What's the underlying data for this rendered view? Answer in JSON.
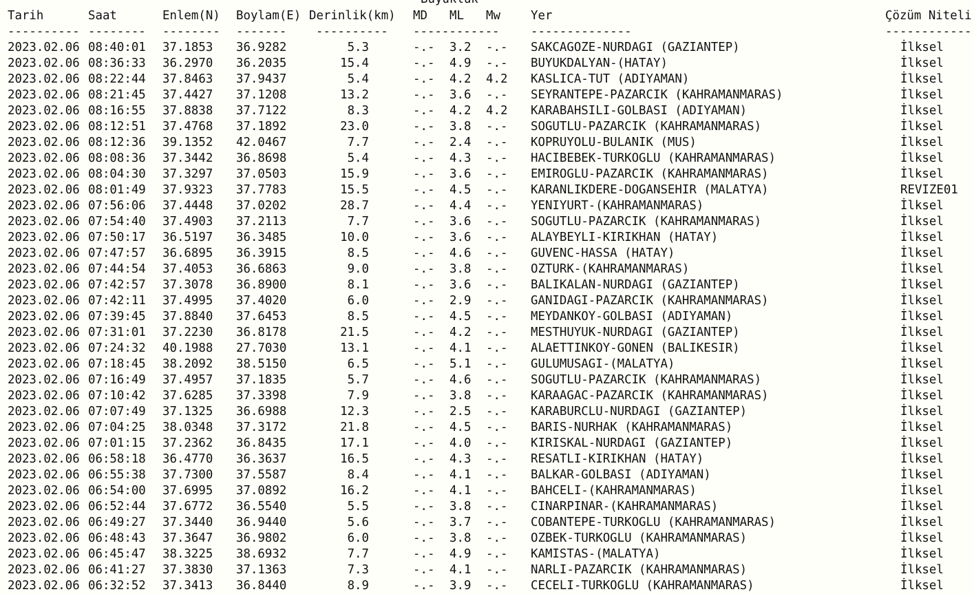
{
  "header": {
    "group_label": "Büyüklük",
    "columns": {
      "tarih": "Tarih",
      "saat": "Saat",
      "enlem": "Enlem(N)",
      "boylam": "Boylam(E)",
      "derinlik": "Derinlik(km)",
      "md": "MD",
      "ml": "ML",
      "mw": "Mw",
      "yer": "Yer",
      "cozum": "Çözüm Niteli"
    },
    "separators": {
      "tarih": "----------",
      "saat": "--------",
      "enlem": "--------",
      "boylam": "-------",
      "derinlik": "----------",
      "mag": "------------",
      "yer": "--------------",
      "cozum": "------------"
    }
  },
  "rows": [
    [
      "2023.02.06",
      "08:40:01",
      "37.1853",
      "36.9282",
      "5.3",
      "-.-",
      "3.2",
      "-.-",
      "SAKCAGOZE-NURDAGI (GAZIANTEP)",
      "İlksel"
    ],
    [
      "2023.02.06",
      "08:36:33",
      "36.2970",
      "36.2035",
      "15.4",
      "-.-",
      "4.9",
      "-.-",
      "BUYUKDALYAN-(HATAY)",
      "İlksel"
    ],
    [
      "2023.02.06",
      "08:22:44",
      "37.8463",
      "37.9437",
      "5.4",
      "-.-",
      "4.2",
      "4.2",
      "KASLICA-TUT (ADIYAMAN)",
      "İlksel"
    ],
    [
      "2023.02.06",
      "08:21:45",
      "37.4427",
      "37.1208",
      "13.2",
      "-.-",
      "3.6",
      "-.-",
      "SEYRANTEPE-PAZARCIK (KAHRAMANMARAS)",
      "İlksel"
    ],
    [
      "2023.02.06",
      "08:16:55",
      "37.8838",
      "37.7122",
      "8.3",
      "-.-",
      "4.2",
      "4.2",
      "KARABAHSILI-GOLBASI (ADIYAMAN)",
      "İlksel"
    ],
    [
      "2023.02.06",
      "08:12:51",
      "37.4768",
      "37.1892",
      "23.0",
      "-.-",
      "3.8",
      "-.-",
      "SOGUTLU-PAZARCIK (KAHRAMANMARAS)",
      "İlksel"
    ],
    [
      "2023.02.06",
      "08:12:36",
      "39.1352",
      "42.0467",
      "7.7",
      "-.-",
      "2.4",
      "-.-",
      "KOPRUYOLU-BULANIK (MUS)",
      "İlksel"
    ],
    [
      "2023.02.06",
      "08:08:36",
      "37.3442",
      "36.8698",
      "5.4",
      "-.-",
      "4.3",
      "-.-",
      "HACIBEBEK-TURKOGLU (KAHRAMANMARAS)",
      "İlksel"
    ],
    [
      "2023.02.06",
      "08:04:30",
      "37.3297",
      "37.0503",
      "15.9",
      "-.-",
      "3.6",
      "-.-",
      "EMIROGLU-PAZARCIK (KAHRAMANMARAS)",
      "İlksel"
    ],
    [
      "2023.02.06",
      "08:01:49",
      "37.9323",
      "37.7783",
      "15.5",
      "-.-",
      "4.5",
      "-.-",
      "KARANLIKDERE-DOGANSEHIR (MALATYA)",
      "REVIZE01"
    ],
    [
      "2023.02.06",
      "07:56:06",
      "37.4448",
      "37.0202",
      "28.7",
      "-.-",
      "4.4",
      "-.-",
      "YENIYURT-(KAHRAMANMARAS)",
      "İlksel"
    ],
    [
      "2023.02.06",
      "07:54:40",
      "37.4903",
      "37.2113",
      "7.7",
      "-.-",
      "3.6",
      "-.-",
      "SOGUTLU-PAZARCIK (KAHRAMANMARAS)",
      "İlksel"
    ],
    [
      "2023.02.06",
      "07:50:17",
      "36.5197",
      "36.3485",
      "10.0",
      "-.-",
      "3.6",
      "-.-",
      "ALAYBEYLI-KIRIKHAN (HATAY)",
      "İlksel"
    ],
    [
      "2023.02.06",
      "07:47:57",
      "36.6895",
      "36.3915",
      "8.5",
      "-.-",
      "4.6",
      "-.-",
      "GUVENC-HASSA (HATAY)",
      "İlksel"
    ],
    [
      "2023.02.06",
      "07:44:54",
      "37.4053",
      "36.6863",
      "9.0",
      "-.-",
      "3.8",
      "-.-",
      "OZTURK-(KAHRAMANMARAS)",
      "İlksel"
    ],
    [
      "2023.02.06",
      "07:42:57",
      "37.3078",
      "36.8900",
      "8.1",
      "-.-",
      "3.6",
      "-.-",
      "BALIKALAN-NURDAGI (GAZIANTEP)",
      "İlksel"
    ],
    [
      "2023.02.06",
      "07:42:11",
      "37.4995",
      "37.4020",
      "6.0",
      "-.-",
      "2.9",
      "-.-",
      "GANIDAGI-PAZARCIK (KAHRAMANMARAS)",
      "İlksel"
    ],
    [
      "2023.02.06",
      "07:39:45",
      "37.8840",
      "37.6453",
      "8.5",
      "-.-",
      "4.5",
      "-.-",
      "MEYDANKOY-GOLBASI (ADIYAMAN)",
      "İlksel"
    ],
    [
      "2023.02.06",
      "07:31:01",
      "37.2230",
      "36.8178",
      "21.5",
      "-.-",
      "4.2",
      "-.-",
      "MESTHUYUK-NURDAGI (GAZIANTEP)",
      "İlksel"
    ],
    [
      "2023.02.06",
      "07:24:32",
      "40.1988",
      "27.7030",
      "13.1",
      "-.-",
      "4.1",
      "-.-",
      "ALAETTINKOY-GONEN (BALIKESIR)",
      "İlksel"
    ],
    [
      "2023.02.06",
      "07:18:45",
      "38.2092",
      "38.5150",
      "6.5",
      "-.-",
      "5.1",
      "-.-",
      "GULUMUSAGI-(MALATYA)",
      "İlksel"
    ],
    [
      "2023.02.06",
      "07:16:49",
      "37.4957",
      "37.1835",
      "5.7",
      "-.-",
      "4.6",
      "-.-",
      "SOGUTLU-PAZARCIK (KAHRAMANMARAS)",
      "İlksel"
    ],
    [
      "2023.02.06",
      "07:10:42",
      "37.6285",
      "37.3398",
      "7.9",
      "-.-",
      "3.8",
      "-.-",
      "KARAAGAC-PAZARCIK (KAHRAMANMARAS)",
      "İlksel"
    ],
    [
      "2023.02.06",
      "07:07:49",
      "37.1325",
      "36.6988",
      "12.3",
      "-.-",
      "2.5",
      "-.-",
      "KARABURCLU-NURDAGI (GAZIANTEP)",
      "İlksel"
    ],
    [
      "2023.02.06",
      "07:04:25",
      "38.0348",
      "37.3172",
      "21.8",
      "-.-",
      "4.5",
      "-.-",
      "BARIS-NURHAK (KAHRAMANMARAS)",
      "İlksel"
    ],
    [
      "2023.02.06",
      "07:01:15",
      "37.2362",
      "36.8435",
      "17.1",
      "-.-",
      "4.0",
      "-.-",
      "KIRISKAL-NURDAGI (GAZIANTEP)",
      "İlksel"
    ],
    [
      "2023.02.06",
      "06:58:18",
      "36.4770",
      "36.3637",
      "16.5",
      "-.-",
      "4.3",
      "-.-",
      "RESATLI-KIRIKHAN (HATAY)",
      "İlksel"
    ],
    [
      "2023.02.06",
      "06:55:38",
      "37.7300",
      "37.5587",
      "8.4",
      "-.-",
      "4.1",
      "-.-",
      "BALKAR-GOLBASI (ADIYAMAN)",
      "İlksel"
    ],
    [
      "2023.02.06",
      "06:54:00",
      "37.6995",
      "37.0892",
      "16.2",
      "-.-",
      "4.1",
      "-.-",
      "BAHCELI-(KAHRAMANMARAS)",
      "İlksel"
    ],
    [
      "2023.02.06",
      "06:52:44",
      "37.6772",
      "36.5540",
      "5.5",
      "-.-",
      "3.8",
      "-.-",
      "CINARPINAR-(KAHRAMANMARAS)",
      "İlksel"
    ],
    [
      "2023.02.06",
      "06:49:27",
      "37.3440",
      "36.9440",
      "5.6",
      "-.-",
      "3.7",
      "-.-",
      "COBANTEPE-TURKOGLU (KAHRAMANMARAS)",
      "İlksel"
    ],
    [
      "2023.02.06",
      "06:48:43",
      "37.3647",
      "36.9802",
      "6.0",
      "-.-",
      "3.8",
      "-.-",
      "OZBEK-TURKOGLU (KAHRAMANMARAS)",
      "İlksel"
    ],
    [
      "2023.02.06",
      "06:45:47",
      "38.3225",
      "38.6932",
      "7.7",
      "-.-",
      "4.9",
      "-.-",
      "KAMISTAS-(MALATYA)",
      "İlksel"
    ],
    [
      "2023.02.06",
      "06:41:27",
      "37.3830",
      "37.1363",
      "7.3",
      "-.-",
      "4.1",
      "-.-",
      "NARLI-PAZARCIK (KAHRAMANMARAS)",
      "İlksel"
    ],
    [
      "2023.02.06",
      "06:32:52",
      "37.3413",
      "36.8440",
      "8.9",
      "-.-",
      "3.9",
      "-.-",
      "CECELI-TURKOGLU (KAHRAMANMARAS)",
      "İlksel"
    ]
  ]
}
